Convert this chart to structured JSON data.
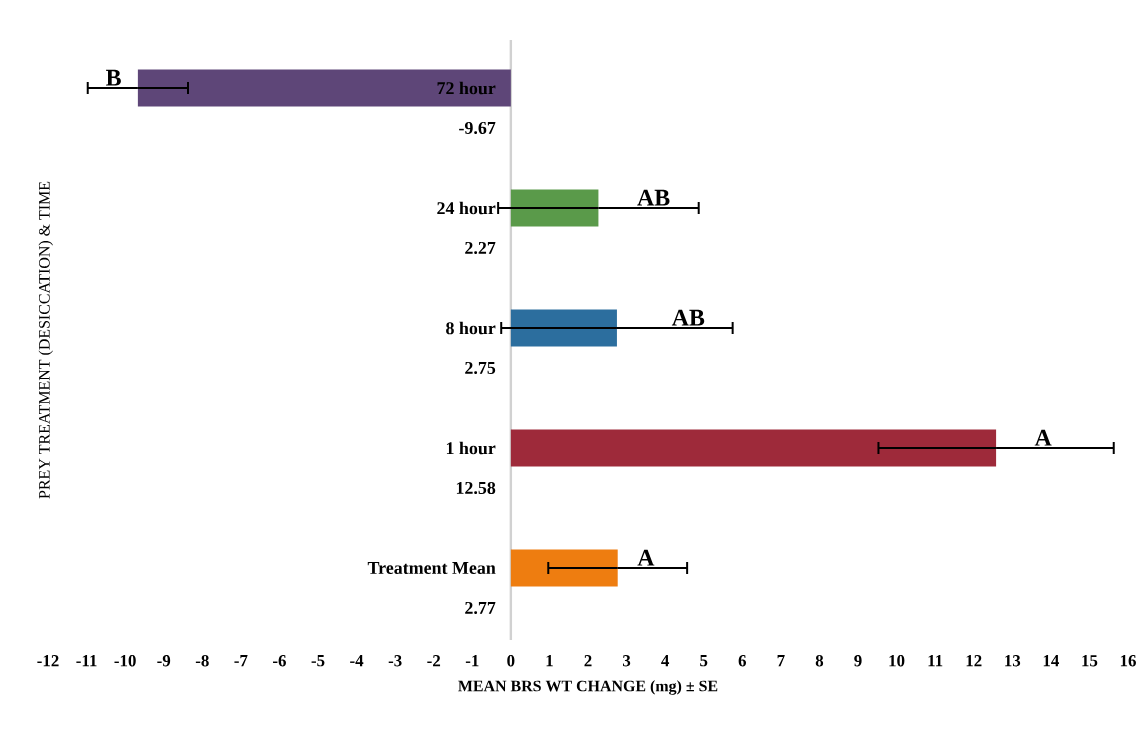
{
  "chart_data": {
    "type": "bar",
    "orientation": "horizontal",
    "xlabel": "MEAN BRS WT CHANGE (mg) ± SE",
    "ylabel": "PREY TREATMENT (DESICCATION) & TIME",
    "categories": [
      "72 hour",
      "24 hour",
      "8 hour",
      "1 hour",
      "Treatment Mean"
    ],
    "values": [
      -9.67,
      2.27,
      2.75,
      12.58,
      2.77
    ],
    "errors": [
      1.3,
      2.6,
      3.0,
      3.05,
      1.8
    ],
    "colors": [
      "#5e4678",
      "#5a9a4a",
      "#2c6e9e",
      "#9e2a3a",
      "#ee7d10"
    ],
    "data_labels": true,
    "xlim": [
      -12,
      16
    ],
    "xticks": [
      -12,
      -11,
      -10,
      -9,
      -8,
      -7,
      -6,
      -5,
      -4,
      -3,
      -2,
      -1,
      0,
      1,
      2,
      3,
      4,
      5,
      6,
      7,
      8,
      9,
      10,
      11,
      12,
      13,
      14,
      15,
      16
    ],
    "grid": false,
    "annotations": [
      {
        "text": "B",
        "x": -10.3,
        "y": "72 hour"
      },
      {
        "text": "AB",
        "x": 3.7,
        "y": "24 hour"
      },
      {
        "text": "AB",
        "x": 4.6,
        "y": "8 hour"
      },
      {
        "text": "A",
        "x": 13.8,
        "y": "1 hour"
      },
      {
        "text": "A",
        "x": 3.5,
        "y": "Treatment Mean"
      }
    ]
  }
}
